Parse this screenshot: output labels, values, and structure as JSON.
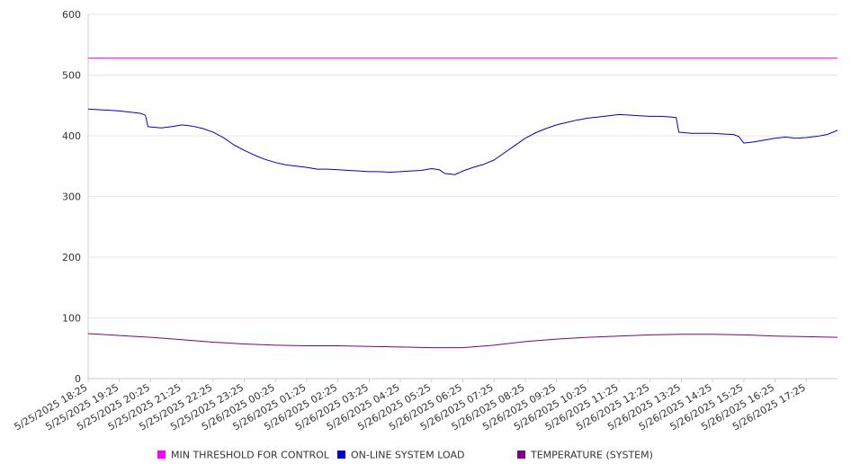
{
  "chart_data": {
    "type": "line",
    "ylim": [
      0,
      600
    ],
    "y_ticks": [
      0,
      100,
      200,
      300,
      400,
      500,
      600
    ],
    "x_ticks": [
      "5/25/2025 18:25",
      "5/25/2025 19:25",
      "5/25/2025 20:25",
      "5/25/2025 21:25",
      "5/25/2025 22:25",
      "5/25/2025 23:25",
      "5/26/2025 00:25",
      "5/26/2025 01:25",
      "5/26/2025 02:25",
      "5/26/2025 03:25",
      "5/26/2025 04:25",
      "5/26/2025 05:25",
      "5/26/2025 06:25",
      "5/26/2025 07:25",
      "5/26/2025 08:25",
      "5/26/2025 09:25",
      "5/26/2025 10:25",
      "5/26/2025 11:25",
      "5/26/2025 12:25",
      "5/26/2025 13:25",
      "5/26/2025 14:25",
      "5/26/2025 15:25",
      "5/26/2025 16:25",
      "5/26/2025 17:25"
    ],
    "x_end": "5/26/2025 18:25",
    "grid": true,
    "legend_position": "bottom",
    "series": [
      {
        "name": "MIN THRESHOLD FOR CONTROL",
        "color": "#ff00ff",
        "points": [
          [
            "5/25/2025 18:25",
            528
          ],
          [
            "5/26/2025 18:25",
            528
          ]
        ]
      },
      {
        "name": "ON-LINE SYSTEM LOAD",
        "color": "#0000cc",
        "points": [
          [
            "5/25/2025 18:25",
            444
          ],
          [
            "5/25/2025 18:45",
            443
          ],
          [
            "5/25/2025 19:05",
            442
          ],
          [
            "5/25/2025 19:25",
            441
          ],
          [
            "5/25/2025 19:45",
            439
          ],
          [
            "5/25/2025 20:05",
            437
          ],
          [
            "5/25/2025 20:15",
            434
          ],
          [
            "5/25/2025 20:20",
            415
          ],
          [
            "5/25/2025 20:45",
            413
          ],
          [
            "5/25/2025 21:05",
            415
          ],
          [
            "5/25/2025 21:25",
            418
          ],
          [
            "5/25/2025 21:45",
            416
          ],
          [
            "5/25/2025 22:05",
            412
          ],
          [
            "5/25/2025 22:25",
            406
          ],
          [
            "5/25/2025 22:45",
            397
          ],
          [
            "5/25/2025 23:05",
            385
          ],
          [
            "5/25/2025 23:25",
            376
          ],
          [
            "5/25/2025 23:45",
            368
          ],
          [
            "5/26/2025 00:05",
            361
          ],
          [
            "5/26/2025 00:25",
            356
          ],
          [
            "5/26/2025 00:45",
            352
          ],
          [
            "5/26/2025 01:05",
            350
          ],
          [
            "5/26/2025 01:25",
            348
          ],
          [
            "5/26/2025 01:45",
            345
          ],
          [
            "5/26/2025 02:05",
            345
          ],
          [
            "5/26/2025 02:25",
            344
          ],
          [
            "5/26/2025 02:45",
            343
          ],
          [
            "5/26/2025 03:05",
            342
          ],
          [
            "5/26/2025 03:25",
            341
          ],
          [
            "5/26/2025 03:45",
            341
          ],
          [
            "5/26/2025 04:05",
            340
          ],
          [
            "5/26/2025 04:25",
            341
          ],
          [
            "5/26/2025 04:45",
            342
          ],
          [
            "5/26/2025 05:05",
            343
          ],
          [
            "5/26/2025 05:25",
            346
          ],
          [
            "5/26/2025 05:40",
            344
          ],
          [
            "5/26/2025 05:50",
            338
          ],
          [
            "5/26/2025 06:10",
            336
          ],
          [
            "5/26/2025 06:25",
            342
          ],
          [
            "5/26/2025 06:45",
            348
          ],
          [
            "5/26/2025 07:05",
            353
          ],
          [
            "5/26/2025 07:25",
            360
          ],
          [
            "5/26/2025 07:45",
            372
          ],
          [
            "5/26/2025 08:05",
            384
          ],
          [
            "5/26/2025 08:25",
            396
          ],
          [
            "5/26/2025 08:45",
            405
          ],
          [
            "5/26/2025 09:05",
            412
          ],
          [
            "5/26/2025 09:25",
            418
          ],
          [
            "5/26/2025 09:45",
            422
          ],
          [
            "5/26/2025 10:05",
            426
          ],
          [
            "5/26/2025 10:25",
            429
          ],
          [
            "5/26/2025 10:45",
            431
          ],
          [
            "5/26/2025 11:05",
            433
          ],
          [
            "5/26/2025 11:25",
            435
          ],
          [
            "5/26/2025 11:45",
            434
          ],
          [
            "5/26/2025 12:05",
            433
          ],
          [
            "5/26/2025 12:25",
            432
          ],
          [
            "5/26/2025 12:45",
            432
          ],
          [
            "5/26/2025 13:05",
            431
          ],
          [
            "5/26/2025 13:15",
            430
          ],
          [
            "5/26/2025 13:20",
            406
          ],
          [
            "5/26/2025 13:45",
            404
          ],
          [
            "5/26/2025 14:05",
            404
          ],
          [
            "5/26/2025 14:25",
            404
          ],
          [
            "5/26/2025 14:45",
            403
          ],
          [
            "5/26/2025 15:05",
            402
          ],
          [
            "5/26/2025 15:15",
            399
          ],
          [
            "5/26/2025 15:25",
            388
          ],
          [
            "5/26/2025 15:45",
            390
          ],
          [
            "5/26/2025 16:05",
            393
          ],
          [
            "5/26/2025 16:25",
            396
          ],
          [
            "5/26/2025 16:45",
            398
          ],
          [
            "5/26/2025 17:05",
            396
          ],
          [
            "5/26/2025 17:25",
            397
          ],
          [
            "5/26/2025 17:45",
            399
          ],
          [
            "5/26/2025 18:05",
            402
          ],
          [
            "5/26/2025 18:25",
            409
          ]
        ]
      },
      {
        "name": "TEMPERATURE (SYSTEM)",
        "color": "#800080",
        "points": [
          [
            "5/25/2025 18:25",
            74
          ],
          [
            "5/25/2025 19:25",
            71
          ],
          [
            "5/25/2025 20:25",
            68
          ],
          [
            "5/25/2025 21:25",
            64
          ],
          [
            "5/25/2025 22:25",
            60
          ],
          [
            "5/25/2025 23:25",
            57
          ],
          [
            "5/26/2025 00:25",
            55
          ],
          [
            "5/26/2025 01:25",
            54
          ],
          [
            "5/26/2025 02:25",
            54
          ],
          [
            "5/26/2025 03:25",
            53
          ],
          [
            "5/26/2025 04:25",
            52
          ],
          [
            "5/26/2025 05:25",
            51
          ],
          [
            "5/26/2025 06:25",
            51
          ],
          [
            "5/26/2025 07:25",
            55
          ],
          [
            "5/26/2025 08:25",
            61
          ],
          [
            "5/26/2025 09:25",
            65
          ],
          [
            "5/26/2025 10:25",
            68
          ],
          [
            "5/26/2025 11:25",
            70
          ],
          [
            "5/26/2025 12:25",
            72
          ],
          [
            "5/26/2025 13:25",
            73
          ],
          [
            "5/26/2025 14:25",
            73
          ],
          [
            "5/26/2025 15:25",
            72
          ],
          [
            "5/26/2025 16:25",
            70
          ],
          [
            "5/26/2025 17:25",
            69
          ],
          [
            "5/26/2025 18:25",
            68
          ]
        ]
      }
    ]
  }
}
